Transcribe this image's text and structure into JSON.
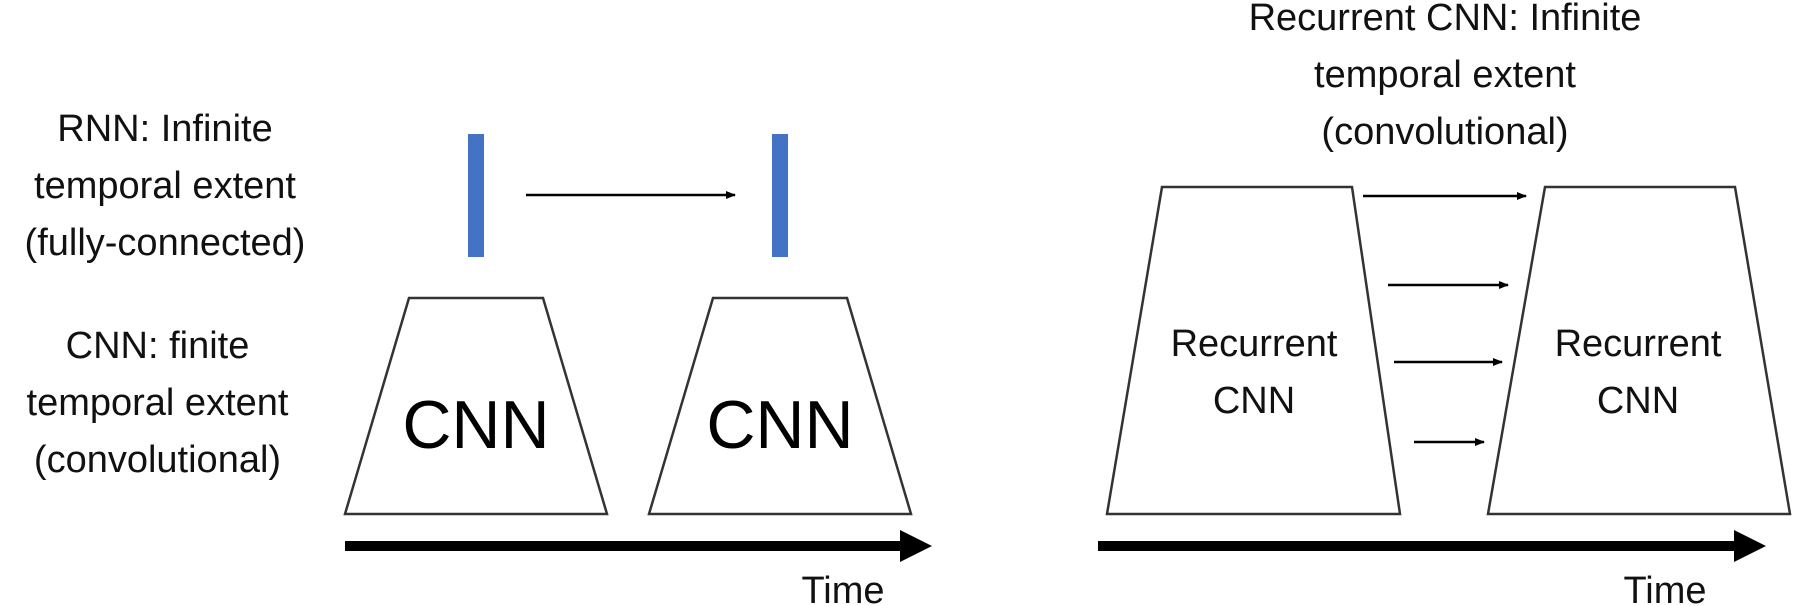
{
  "labels": {
    "rnn": [
      "RNN: Infinite",
      "temporal extent",
      "(fully-connected)"
    ],
    "cnn": [
      "CNN: finite",
      "temporal extent",
      "(convolutional)"
    ],
    "recurrent_cnn": [
      "Recurrent CNN: Infinite",
      "temporal extent",
      "(convolutional)"
    ]
  },
  "left_panel": {
    "block_label": "CNN",
    "axis_label": "Time"
  },
  "right_panel": {
    "block_label_line1": "Recurrent",
    "block_label_line2": "CNN",
    "axis_label": "Time"
  },
  "colors": {
    "hidden_state_bar": "#4472c4",
    "stroke": "#333333",
    "axis": "#000000"
  }
}
